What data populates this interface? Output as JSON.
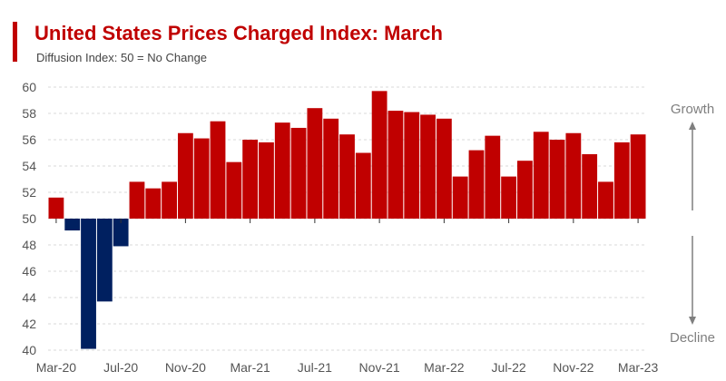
{
  "header": {
    "title": "United States Prices Charged Index: March",
    "subtitle": "Diffusion Index: 50 = No Change"
  },
  "colors": {
    "accent": "#c00000",
    "positive": "#c00000",
    "negative": "#002060",
    "grid": "#d9d9d9",
    "arrow": "#7f7f7f"
  },
  "chart_data": {
    "type": "bar",
    "title": "United States Prices Charged Index: March",
    "subtitle": "Diffusion Index: 50 = No Change",
    "baseline": 50,
    "ylim": [
      40,
      60
    ],
    "yticks": [
      40,
      42,
      44,
      46,
      48,
      50,
      52,
      54,
      56,
      58,
      60
    ],
    "grid": true,
    "categories": [
      "Mar-20",
      "Apr-20",
      "May-20",
      "Jun-20",
      "Jul-20",
      "Aug-20",
      "Sep-20",
      "Oct-20",
      "Nov-20",
      "Dec-20",
      "Jan-21",
      "Feb-21",
      "Mar-21",
      "Apr-21",
      "May-21",
      "Jun-21",
      "Jul-21",
      "Aug-21",
      "Sep-21",
      "Oct-21",
      "Nov-21",
      "Dec-21",
      "Jan-22",
      "Feb-22",
      "Mar-22",
      "Apr-22",
      "May-22",
      "Jun-22",
      "Jul-22",
      "Aug-22",
      "Sep-22",
      "Oct-22",
      "Nov-22",
      "Dec-22",
      "Jan-23",
      "Feb-23",
      "Mar-23"
    ],
    "values": [
      51.6,
      49.1,
      40.1,
      43.7,
      47.9,
      52.8,
      52.3,
      52.8,
      56.5,
      56.1,
      57.4,
      54.3,
      56.0,
      55.8,
      57.3,
      56.9,
      58.4,
      57.6,
      56.4,
      55.0,
      59.7,
      58.2,
      58.1,
      57.9,
      57.6,
      53.2,
      55.2,
      56.3,
      53.2,
      54.4,
      56.6,
      56.0,
      56.5,
      54.9,
      52.8,
      55.8,
      56.4
    ],
    "xtick_labels": [
      "Mar-20",
      "Jul-20",
      "Nov-20",
      "Mar-21",
      "Jul-21",
      "Nov-21",
      "Mar-22",
      "Jul-22",
      "Nov-22",
      "Mar-23"
    ],
    "annotations": {
      "up": "Growth",
      "down": "Decline"
    }
  }
}
